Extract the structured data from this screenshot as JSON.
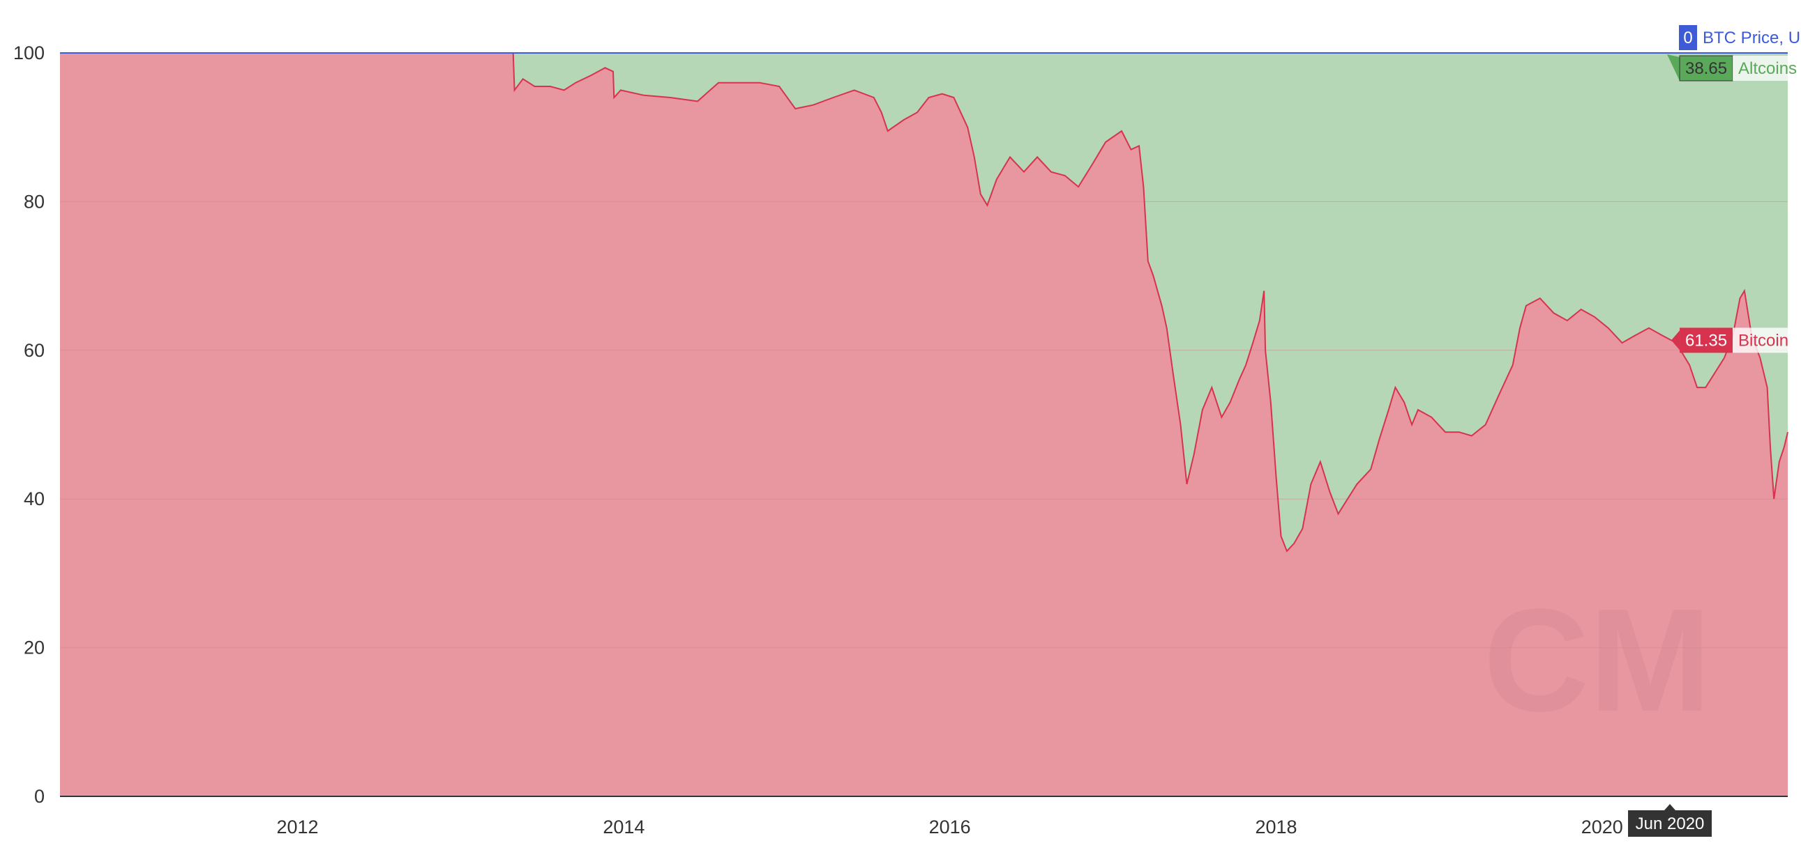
{
  "chart_data": {
    "type": "area",
    "stacked": true,
    "percent": true,
    "x_ticks": [
      "2012",
      "2014",
      "2016",
      "2018",
      "2020"
    ],
    "x_tick_years": [
      2012,
      2014,
      2016,
      2018,
      2020
    ],
    "xlim": [
      "2010-07-18",
      "2021-02-20"
    ],
    "ylim": [
      0,
      100
    ],
    "y_ticks": [
      0,
      20,
      40,
      60,
      80,
      100
    ],
    "grid": true,
    "series": [
      {
        "name": "Bitcoin",
        "color": "#e8969f",
        "line_color": "#d7334f",
        "points": [
          [
            "2010-07-18",
            100
          ],
          [
            "2013-04-28",
            100
          ],
          [
            "2013-05-01",
            95
          ],
          [
            "2013-05-20",
            96.5
          ],
          [
            "2013-06-15",
            95.5
          ],
          [
            "2013-07-20",
            95.5
          ],
          [
            "2013-08-20",
            95
          ],
          [
            "2013-09-15",
            96
          ],
          [
            "2013-10-20",
            97
          ],
          [
            "2013-11-20",
            98
          ],
          [
            "2013-12-08",
            97.5
          ],
          [
            "2013-12-10",
            94
          ],
          [
            "2013-12-25",
            95
          ],
          [
            "2014-02-15",
            94.3
          ],
          [
            "2014-04-15",
            94
          ],
          [
            "2014-06-15",
            93.5
          ],
          [
            "2014-08-01",
            96
          ],
          [
            "2014-09-15",
            96
          ],
          [
            "2014-11-01",
            96
          ],
          [
            "2014-12-15",
            95.5
          ],
          [
            "2015-01-20",
            92.5
          ],
          [
            "2015-03-01",
            93
          ],
          [
            "2015-04-15",
            94
          ],
          [
            "2015-06-01",
            95
          ],
          [
            "2015-07-15",
            94
          ],
          [
            "2015-08-01",
            92
          ],
          [
            "2015-08-15",
            89.5
          ],
          [
            "2015-09-20",
            91
          ],
          [
            "2015-10-20",
            92
          ],
          [
            "2015-11-15",
            94
          ],
          [
            "2015-12-15",
            94.5
          ],
          [
            "2016-01-10",
            94
          ],
          [
            "2016-02-10",
            90
          ],
          [
            "2016-02-25",
            86
          ],
          [
            "2016-03-10",
            81
          ],
          [
            "2016-03-25",
            79.5
          ],
          [
            "2016-04-15",
            83
          ],
          [
            "2016-05-15",
            86
          ],
          [
            "2016-06-15",
            84
          ],
          [
            "2016-07-15",
            86
          ],
          [
            "2016-08-15",
            84
          ],
          [
            "2016-09-15",
            83.5
          ],
          [
            "2016-10-15",
            82
          ],
          [
            "2016-11-15",
            85
          ],
          [
            "2016-12-15",
            88
          ],
          [
            "2017-01-20",
            89.5
          ],
          [
            "2017-02-10",
            87
          ],
          [
            "2017-02-28",
            87.5
          ],
          [
            "2017-03-10",
            82
          ],
          [
            "2017-03-20",
            72
          ],
          [
            "2017-04-01",
            70
          ],
          [
            "2017-04-20",
            66
          ],
          [
            "2017-05-01",
            63
          ],
          [
            "2017-05-15",
            57
          ],
          [
            "2017-06-01",
            50
          ],
          [
            "2017-06-15",
            42
          ],
          [
            "2017-07-01",
            46
          ],
          [
            "2017-07-20",
            52
          ],
          [
            "2017-08-10",
            55
          ],
          [
            "2017-09-01",
            51
          ],
          [
            "2017-09-20",
            53
          ],
          [
            "2017-10-10",
            56
          ],
          [
            "2017-10-25",
            58
          ],
          [
            "2017-11-10",
            61
          ],
          [
            "2017-11-25",
            64
          ],
          [
            "2017-12-05",
            68
          ],
          [
            "2017-12-08",
            60
          ],
          [
            "2017-12-20",
            53
          ],
          [
            "2018-01-01",
            43
          ],
          [
            "2018-01-12",
            35
          ],
          [
            "2018-01-25",
            33
          ],
          [
            "2018-02-10",
            34
          ],
          [
            "2018-03-01",
            36
          ],
          [
            "2018-03-20",
            42
          ],
          [
            "2018-04-10",
            45
          ],
          [
            "2018-05-01",
            41
          ],
          [
            "2018-05-20",
            38
          ],
          [
            "2018-06-10",
            40
          ],
          [
            "2018-07-01",
            42
          ],
          [
            "2018-08-01",
            44
          ],
          [
            "2018-08-20",
            48
          ],
          [
            "2018-09-10",
            52
          ],
          [
            "2018-09-25",
            55
          ],
          [
            "2018-10-15",
            53
          ],
          [
            "2018-11-01",
            50
          ],
          [
            "2018-11-15",
            52
          ],
          [
            "2018-12-15",
            51
          ],
          [
            "2019-01-15",
            49
          ],
          [
            "2019-02-15",
            49
          ],
          [
            "2019-03-15",
            48.5
          ],
          [
            "2019-04-15",
            50
          ],
          [
            "2019-05-15",
            54
          ],
          [
            "2019-06-15",
            58
          ],
          [
            "2019-07-01",
            63
          ],
          [
            "2019-07-15",
            66
          ],
          [
            "2019-08-15",
            67
          ],
          [
            "2019-09-15",
            65
          ],
          [
            "2019-10-15",
            64
          ],
          [
            "2019-11-15",
            65.5
          ],
          [
            "2019-12-15",
            64.5
          ],
          [
            "2020-01-15",
            63
          ],
          [
            "2020-02-15",
            61
          ],
          [
            "2020-03-15",
            62
          ],
          [
            "2020-04-15",
            63
          ],
          [
            "2020-05-15",
            62
          ],
          [
            "2020-06-15",
            61
          ],
          [
            "2020-07-15",
            58
          ],
          [
            "2020-08-01",
            55
          ],
          [
            "2020-08-20",
            55
          ],
          [
            "2020-09-10",
            57
          ],
          [
            "2020-10-01",
            59
          ],
          [
            "2020-10-20",
            62
          ],
          [
            "2020-11-05",
            67
          ],
          [
            "2020-11-15",
            68
          ],
          [
            "2020-12-01",
            62
          ],
          [
            "2020-12-20",
            59
          ],
          [
            "2021-01-05",
            55
          ],
          [
            "2021-01-12",
            47
          ],
          [
            "2021-01-20",
            40
          ],
          [
            "2021-02-01",
            45
          ],
          [
            "2021-02-12",
            47
          ],
          [
            "2021-02-20",
            49
          ]
        ]
      },
      {
        "name": "Altcoins",
        "color": "#b5d7b5",
        "note": "fills remaining share up to 100"
      },
      {
        "name": "BTC Price, USD",
        "color": "#3e5bd6"
      }
    ],
    "cursor_date": "2020-06-01",
    "cursor_label": "Jun 2020",
    "tooltips": [
      {
        "series": "BTC Price, USD",
        "value": "0",
        "color": "#3e5bd6"
      },
      {
        "series": "Altcoins",
        "value": "38.65",
        "color": "#5aa85a"
      },
      {
        "series": "Bitcoin",
        "value": "61.35",
        "color": "#d7334f"
      }
    ],
    "watermark": "CM"
  }
}
